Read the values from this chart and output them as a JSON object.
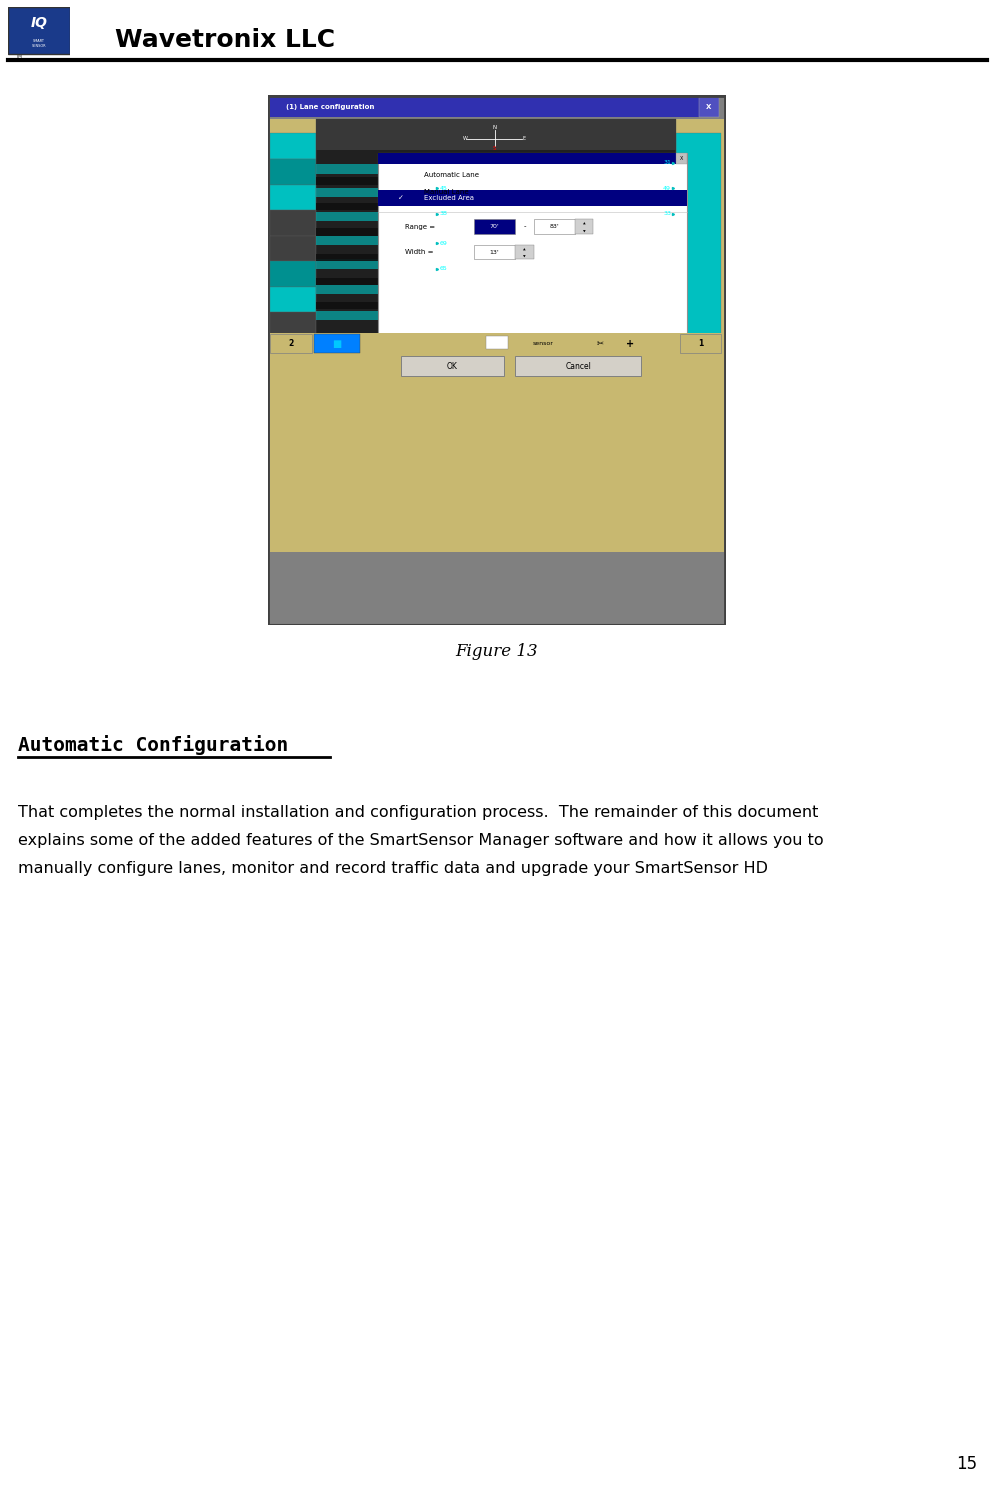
{
  "header_title": "Wavetronix LLC",
  "header_title_fontsize": 18,
  "figure_caption": "Figure 13",
  "section_heading": "Automatic Configuration",
  "body_line1": "That completes the normal installation and configuration process.  The remainder of this document",
  "body_line2": "explains some of the added features of the SmartSensor Manager software and how it allows you to",
  "body_line3": "manually configure lanes, monitor and record traffic data and upgrade your SmartSensor HD",
  "page_number": "15",
  "background_color": "#ffffff"
}
